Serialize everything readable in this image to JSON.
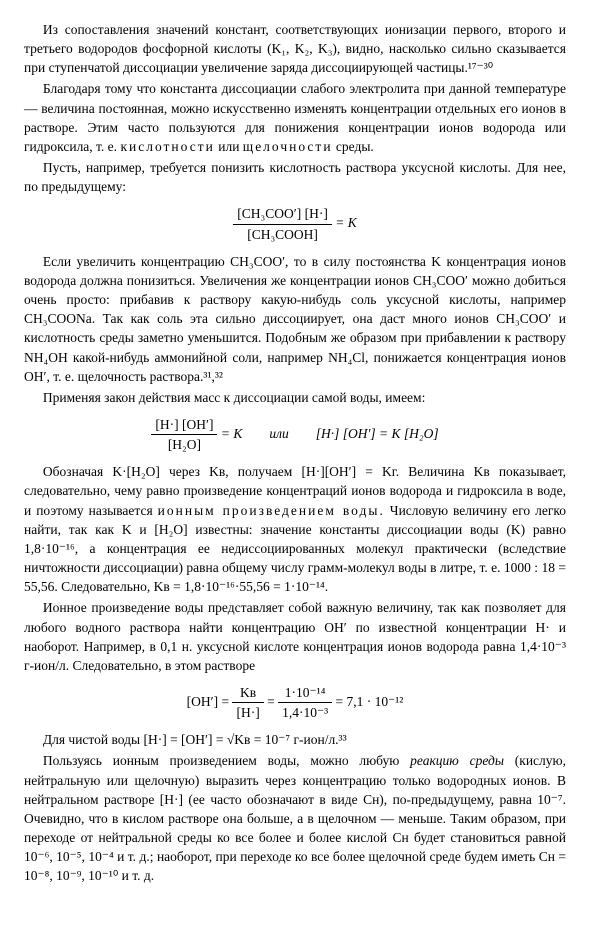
{
  "p1": "Из сопоставления значений констант, соответствующих ионизации первого, второго и третьего водородов фосфорной кислоты (K₁, K₂, K₃), видно, насколько сильно сказывается при ступенчатой диссоциации увеличение заряда диссоциирующей частицы.¹⁷⁻³⁰",
  "p2a": "Благодаря тому что константа диссоциации слабого электролита при данной температуре — величина постоянная, можно искусственно изменять концентрации отдельных его ионов в растворе. Этим часто пользуются для понижения концентрации ионов водорода или гидроксила, т. е. ",
  "p2b": "кислотности",
  "p2c": " или ",
  "p2d": "щелочности",
  "p2e": " среды.",
  "p3": "Пусть, например, требуется понизить кислотность раствора уксусной кислоты. Для нее, по предыдущему:",
  "f1_num": "[CH₃COO′] [H·]",
  "f1_den": "[CH₃COOH]",
  "f1_rhs": " = K",
  "p4": "Если увеличить концентрацию CH₃COO′, то в силу постоянства K концентрация ионов водорода должна понизиться. Увеличения же концентрации ионов CH₃COO′ можно добиться очень просто: прибавив к раствору какую-нибудь соль уксусной кислоты, например CH₃COONa. Так как соль эта сильно диссоциирует, она даст много ионов CH₃COO′ и кислотность среды заметно уменьшится. Подобным же образом при прибавлении к раствору NH₄OH какой-нибудь аммонийной соли, например NH₄Cl, понижается концентрация ионов OH′, т. е. щелочность раствора.³¹,³²",
  "p5": "Применяя закон действия масс к диссоциации самой воды, имеем:",
  "f2_num": "[H·] [OH′]",
  "f2_den": "[H₂O]",
  "f2_mid": " = K        или        [H·] [OH′] = K [H₂O]",
  "p6a": "Обозначая K·[H₂O] через Kв, получаем [H·][OH′] = Kг. Величина Kв показывает, следовательно, чему равно произведение концентраций ионов водорода и гидроксила в воде, и поэтому называется ",
  "p6b": "ионным произведением воды.",
  "p6c": " Числовую величину его легко найти, так как K и [H₂O] известны: значение константы диссоциации воды (K) равно 1,8·10⁻¹⁶, а концентрация ее недиссоциированных молекул практически (вследствие ничтожности диссоциации) равна общему числу грамм-молекул воды в литре, т. е. 1000 : 18 = 55,56. Следовательно, Kв = 1,8·10⁻¹⁶·55,56 = 1·10⁻¹⁴.",
  "p7": "Ионное произведение воды представляет собой важную величину, так как позволяет для любого водного раствора найти концентрацию OH′ по известной концентрации H· и наоборот. Например, в 0,1 н. уксусной кислоте концентрация ионов водорода равна 1,4·10⁻³ г-ион/л. Следовательно, в этом растворе",
  "f3_lhs": "[OH′] = ",
  "f3a_num": "Kв",
  "f3a_den": "[H·]",
  "f3_eq1": " = ",
  "f3b_num": "1·10⁻¹⁴",
  "f3b_den": "1,4·10⁻³",
  "f3_rhs": " = 7,1 · 10⁻¹²",
  "p8": "Для чистой воды [H·] = [OH′] = √Kв = 10⁻⁷ г-ион/л.³³",
  "p9a": "Пользуясь ионным произведением воды, можно любую ",
  "p9b": "реакцию среды",
  "p9c": " (кислую, нейтральную или щелочную) выразить через концентрацию только водородных ионов. В нейтральном растворе [H·] (ее часто обозначают в виде Cн), по-предыдущему, равна 10⁻⁷. Очевидно, что в кислом растворе она больше, а в щелочном — меньше. Таким образом, при переходе от нейтральной среды ко все более и более кислой Cн будет становиться равной 10⁻⁶, 10⁻⁵, 10⁻⁴ и т. д.; наоборот, при переходе ко все более щелочной среде будем иметь Cн = 10⁻⁸, 10⁻⁹, 10⁻¹⁰ и т. д."
}
